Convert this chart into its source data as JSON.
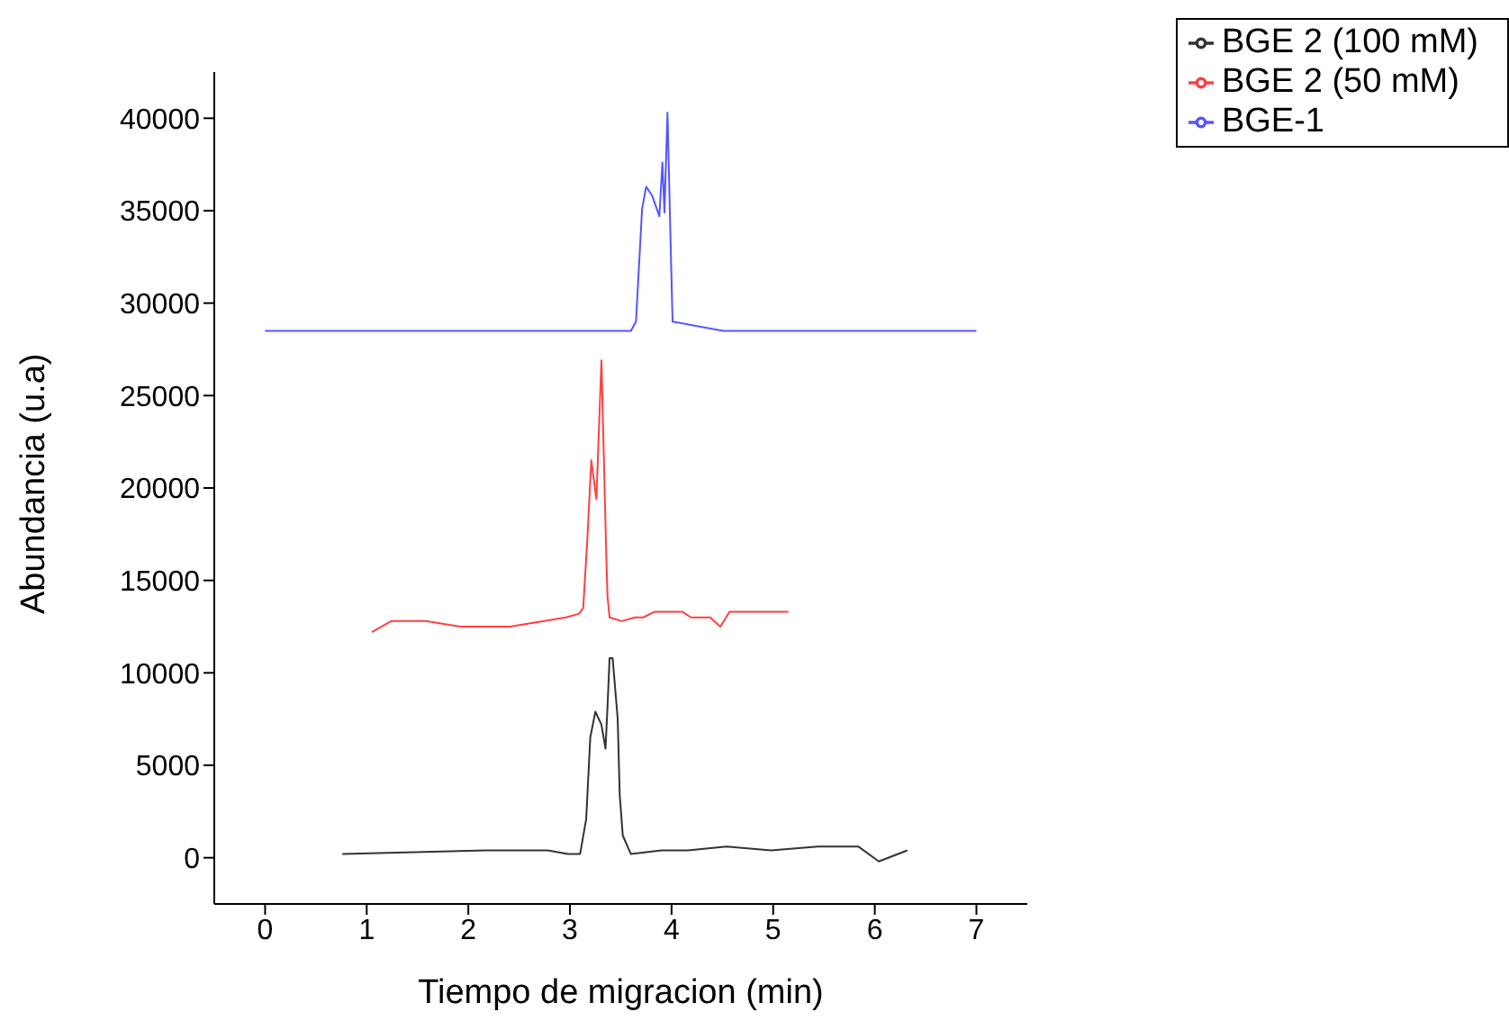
{
  "chart_data": {
    "type": "line",
    "xlabel": "Tiempo de migracion (min)",
    "ylabel": "Abundancia (u.a)",
    "xlim": [
      -0.5,
      7.5
    ],
    "xticks": [
      0,
      1,
      2,
      3,
      4,
      5,
      6,
      7
    ],
    "ylim": [
      -2500,
      42500
    ],
    "yticks": [
      0,
      5000,
      10000,
      15000,
      20000,
      25000,
      30000,
      35000,
      40000
    ],
    "grid": false,
    "legend": "top right",
    "series": [
      {
        "name": "BGE-1",
        "color": "#5555ff",
        "x": [
          0,
          3.6,
          3.65,
          3.71,
          3.75,
          3.81,
          3.88,
          3.91,
          3.93,
          3.96,
          3.99,
          4.01,
          4.51,
          7
        ],
        "values": [
          28500,
          28500,
          29000,
          35100,
          36300,
          35800,
          34700,
          37600,
          34900,
          40300,
          33400,
          29000,
          28500,
          28500
        ]
      },
      {
        "name": "BGE 2 (50 mM)",
        "color": "#ff4040",
        "x": [
          1.05,
          1.24,
          1.58,
          1.92,
          2.41,
          2.96,
          3.09,
          3.13,
          3.17,
          3.21,
          3.26,
          3.31,
          3.36,
          3.37,
          3.39,
          3.51,
          3.64,
          3.72,
          3.83,
          4.11,
          4.19,
          4.38,
          4.48,
          4.57,
          5.15
        ],
        "values": [
          12200,
          12800,
          12800,
          12500,
          12500,
          13000,
          13200,
          13500,
          17100,
          21500,
          19400,
          26900,
          15800,
          14100,
          13000,
          12800,
          13000,
          13000,
          13300,
          13300,
          13000,
          13000,
          12500,
          13300,
          13300
        ]
      },
      {
        "name": "BGE 2 (100 mM)",
        "color": "#333333",
        "x": [
          0.76,
          2.18,
          2.78,
          2.98,
          3.1,
          3.16,
          3.2,
          3.25,
          3.31,
          3.35,
          3.37,
          3.39,
          3.42,
          3.47,
          3.49,
          3.52,
          3.6,
          3.9,
          4.16,
          4.54,
          4.98,
          5.44,
          5.84,
          6.04,
          6.32
        ],
        "values": [
          200,
          400,
          400,
          200,
          200,
          2100,
          6500,
          7900,
          7200,
          5900,
          8200,
          10800,
          10800,
          7500,
          3400,
          1200,
          200,
          400,
          400,
          600,
          400,
          600,
          600,
          -200,
          400
        ]
      }
    ]
  }
}
